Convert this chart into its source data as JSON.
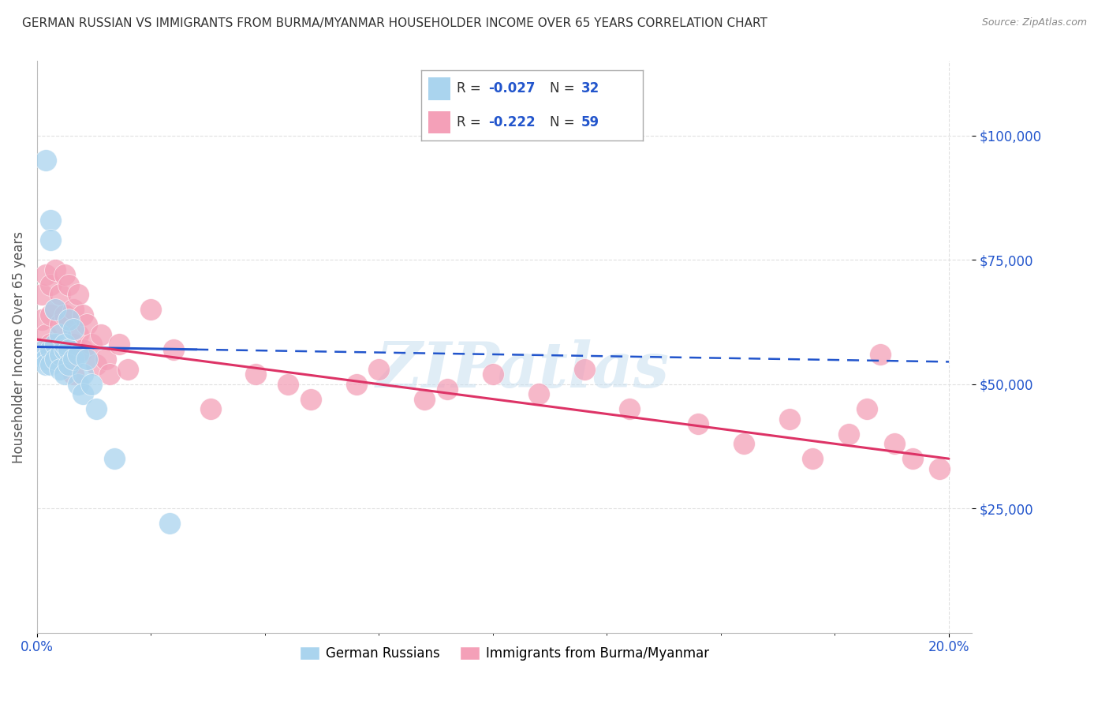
{
  "title": "GERMAN RUSSIAN VS IMMIGRANTS FROM BURMA/MYANMAR HOUSEHOLDER INCOME OVER 65 YEARS CORRELATION CHART",
  "source": "Source: ZipAtlas.com",
  "ylabel": "Householder Income Over 65 years",
  "xlim": [
    0.0,
    0.205
  ],
  "ylim": [
    0,
    115000
  ],
  "yticks": [
    25000,
    50000,
    75000,
    100000
  ],
  "ytick_labels": [
    "$25,000",
    "$50,000",
    "$75,000",
    "$100,000"
  ],
  "xtick_left": 0.0,
  "xtick_right": 0.2,
  "xtick_left_label": "0.0%",
  "xtick_right_label": "20.0%",
  "watermark": "ZIPatlas",
  "color_blue": "#aad4ee",
  "color_pink": "#f4a0b8",
  "line_color_blue": "#2255cc",
  "line_color_pink": "#dd3366",
  "grid_color": "#dddddd",
  "title_color": "#333333",
  "axis_label_color": "#555555",
  "tick_label_color": "#2255cc",
  "legend_box_color": "#aaaaaa",
  "gr_line_intercept": 57500,
  "gr_line_slope": -15000,
  "bm_line_intercept": 59000,
  "bm_line_slope": -120000,
  "german_russian_x": [
    0.001,
    0.0015,
    0.002,
    0.002,
    0.002,
    0.003,
    0.003,
    0.003,
    0.003,
    0.004,
    0.004,
    0.004,
    0.005,
    0.005,
    0.005,
    0.006,
    0.006,
    0.006,
    0.007,
    0.007,
    0.007,
    0.008,
    0.008,
    0.009,
    0.009,
    0.01,
    0.01,
    0.011,
    0.012,
    0.013,
    0.017,
    0.029
  ],
  "german_russian_y": [
    56000,
    57000,
    95000,
    55000,
    54000,
    83000,
    79000,
    57000,
    54000,
    58000,
    65000,
    55000,
    56000,
    53000,
    60000,
    57000,
    52000,
    58000,
    57000,
    63000,
    54000,
    55000,
    61000,
    50000,
    56000,
    52000,
    48000,
    55000,
    50000,
    45000,
    35000,
    22000
  ],
  "burma_x": [
    0.001,
    0.001,
    0.001,
    0.002,
    0.002,
    0.003,
    0.003,
    0.003,
    0.004,
    0.004,
    0.004,
    0.005,
    0.005,
    0.005,
    0.006,
    0.006,
    0.006,
    0.007,
    0.007,
    0.007,
    0.008,
    0.008,
    0.008,
    0.009,
    0.009,
    0.01,
    0.01,
    0.011,
    0.012,
    0.013,
    0.014,
    0.015,
    0.016,
    0.018,
    0.02,
    0.025,
    0.03,
    0.038,
    0.048,
    0.055,
    0.06,
    0.07,
    0.075,
    0.085,
    0.09,
    0.1,
    0.11,
    0.12,
    0.13,
    0.145,
    0.155,
    0.165,
    0.17,
    0.178,
    0.182,
    0.185,
    0.188,
    0.192,
    0.198
  ],
  "burma_y": [
    68000,
    63000,
    57000,
    72000,
    60000,
    70000,
    64000,
    58000,
    73000,
    65000,
    57000,
    68000,
    62000,
    56000,
    72000,
    64000,
    57000,
    70000,
    63000,
    55000,
    65000,
    58000,
    52000,
    68000,
    60000,
    64000,
    57000,
    62000,
    58000,
    54000,
    60000,
    55000,
    52000,
    58000,
    53000,
    65000,
    57000,
    45000,
    52000,
    50000,
    47000,
    50000,
    53000,
    47000,
    49000,
    52000,
    48000,
    53000,
    45000,
    42000,
    38000,
    43000,
    35000,
    40000,
    45000,
    56000,
    38000,
    35000,
    33000
  ]
}
